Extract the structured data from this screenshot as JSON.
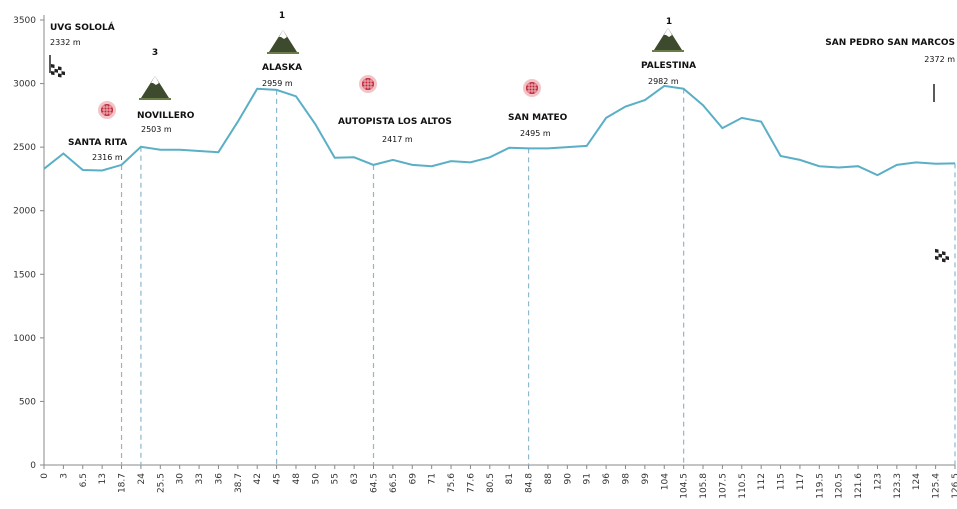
{
  "chart_data": {
    "type": "area",
    "ylim": [
      0,
      3500
    ],
    "yticks": [
      0,
      500,
      1000,
      1500,
      2000,
      2500,
      3000,
      3500
    ],
    "colors": {
      "line": "#5aafc6",
      "dash": "#8fb8cf"
    },
    "x_labels": [
      "0",
      "3",
      "6.5",
      "13",
      "18.7",
      "24",
      "25.5",
      "30",
      "33",
      "36",
      "38.7",
      "42",
      "45",
      "48",
      "50",
      "55",
      "63",
      "64.5",
      "66.5",
      "69",
      "71",
      "75.6",
      "77.6",
      "80.5",
      "81",
      "84.8",
      "88",
      "90",
      "91",
      "96",
      "98",
      "99",
      "104",
      "104.5",
      "105.8",
      "107.5",
      "110.5",
      "112",
      "115",
      "117",
      "119.5",
      "120.5",
      "121.6",
      "123",
      "123.3",
      "124",
      "125.4",
      "126.5"
    ],
    "y": [
      2330,
      2450,
      2320,
      2316,
      2360,
      2503,
      2480,
      2480,
      2470,
      2460,
      2700,
      2959,
      2950,
      2900,
      2680,
      2417,
      2420,
      2360,
      2400,
      2360,
      2350,
      2390,
      2380,
      2420,
      2495,
      2490,
      2490,
      2500,
      2510,
      2730,
      2820,
      2870,
      2982,
      2960,
      2830,
      2650,
      2730,
      2700,
      2430,
      2400,
      2350,
      2340,
      2350,
      2280,
      2360,
      2380,
      2370,
      2372
    ],
    "markers": [
      {
        "x_index": 4,
        "name": "SANTA RITA",
        "elev": "2316 m",
        "icon": "sprint-point-icon"
      },
      {
        "x_index": 5,
        "name": "NOVILLERO",
        "elev": "2503 m",
        "icon": "mountain-icon",
        "category": "3"
      },
      {
        "x_index": 12,
        "name": "ALASKA",
        "elev": "2959 m",
        "icon": "mountain-icon",
        "category": "1"
      },
      {
        "x_index": 17,
        "name": "AUTOPISTA LOS ALTOS",
        "elev": "2417 m",
        "icon": "sprint-point-icon"
      },
      {
        "x_index": 25,
        "name": "SAN MATEO",
        "elev": "2495 m",
        "icon": "sprint-point-icon"
      },
      {
        "x_index": 33,
        "name": "PALESTINA",
        "elev": "2982 m",
        "icon": "mountain-icon",
        "category": "1"
      },
      {
        "x_index": 47,
        "name": "SAN PEDRO SAN MARCOS",
        "elev": "2372 m",
        "icon": "finish-flag-icon"
      }
    ],
    "start": {
      "name": "UVG SOLOLÁ",
      "elev": "2332 m",
      "icon": "start-flag-icon"
    }
  }
}
